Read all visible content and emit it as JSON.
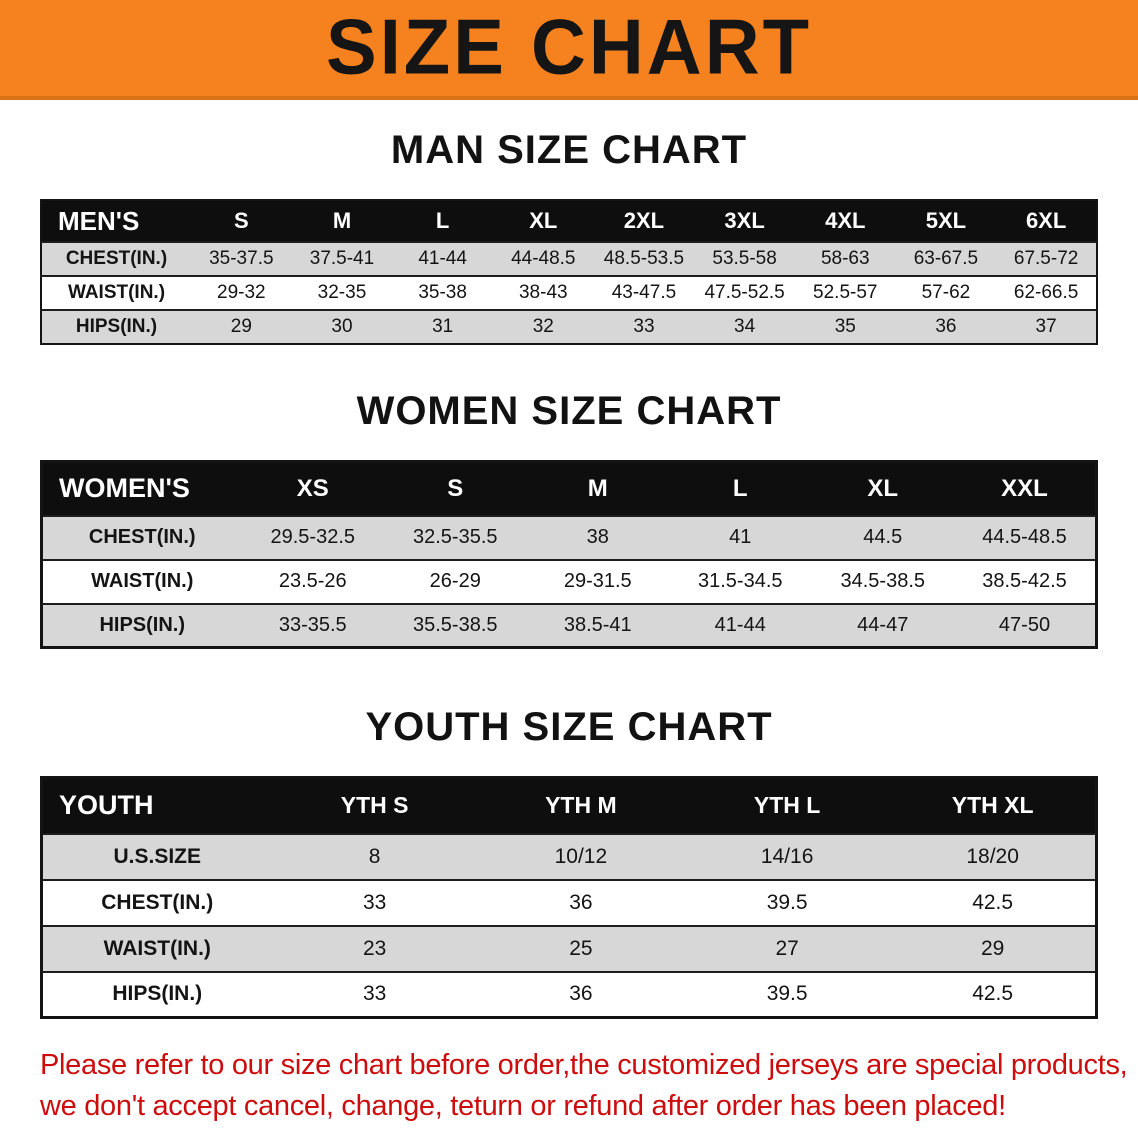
{
  "banner": {
    "title": "SIZE CHART",
    "bg_color": "#f5821e"
  },
  "sections": {
    "men": {
      "heading": "MAN SIZE CHART",
      "header": [
        "MEN'S",
        "S",
        "M",
        "L",
        "XL",
        "2XL",
        "3XL",
        "4XL",
        "5XL",
        "6XL"
      ],
      "rows": [
        {
          "label": "CHEST(IN.)",
          "values": [
            "35-37.5",
            "37.5-41",
            "41-44",
            "44-48.5",
            "48.5-53.5",
            "53.5-58",
            "58-63",
            "63-67.5",
            "67.5-72"
          ]
        },
        {
          "label": "WAIST(IN.)",
          "values": [
            "29-32",
            "32-35",
            "35-38",
            "38-43",
            "43-47.5",
            "47.5-52.5",
            "52.5-57",
            "57-62",
            "62-66.5"
          ]
        },
        {
          "label": "HIPS(IN.)",
          "values": [
            "29",
            "30",
            "31",
            "32",
            "33",
            "34",
            "35",
            "36",
            "37"
          ]
        }
      ]
    },
    "women": {
      "heading": "WOMEN SIZE CHART",
      "header": [
        "WOMEN'S",
        "XS",
        "S",
        "M",
        "L",
        "XL",
        "XXL"
      ],
      "rows": [
        {
          "label": "CHEST(IN.)",
          "values": [
            "29.5-32.5",
            "32.5-35.5",
            "38",
            "41",
            "44.5",
            "44.5-48.5"
          ]
        },
        {
          "label": "WAIST(IN.)",
          "values": [
            "23.5-26",
            "26-29",
            "29-31.5",
            "31.5-34.5",
            "34.5-38.5",
            "38.5-42.5"
          ]
        },
        {
          "label": "HIPS(IN.)",
          "values": [
            "33-35.5",
            "35.5-38.5",
            "38.5-41",
            "41-44",
            "44-47",
            "47-50"
          ]
        }
      ]
    },
    "youth": {
      "heading": "YOUTH SIZE CHART",
      "header": [
        "YOUTH",
        "YTH S",
        "YTH M",
        "YTH L",
        "YTH XL"
      ],
      "rows": [
        {
          "label": "U.S.SIZE",
          "values": [
            "8",
            "10/12",
            "14/16",
            "18/20"
          ]
        },
        {
          "label": "CHEST(IN.)",
          "values": [
            "33",
            "36",
            "39.5",
            "42.5"
          ]
        },
        {
          "label": "WAIST(IN.)",
          "values": [
            "23",
            "25",
            "27",
            "29"
          ]
        },
        {
          "label": "HIPS(IN.)",
          "values": [
            "33",
            "36",
            "39.5",
            "42.5"
          ]
        }
      ]
    }
  },
  "disclaimer": {
    "line1": "Please refer to our size chart before order,the customized jerseys are special products,",
    "line2": "we don't accept cancel, change, teturn or refund after order has been placed!",
    "color": "#cd0d0d"
  }
}
